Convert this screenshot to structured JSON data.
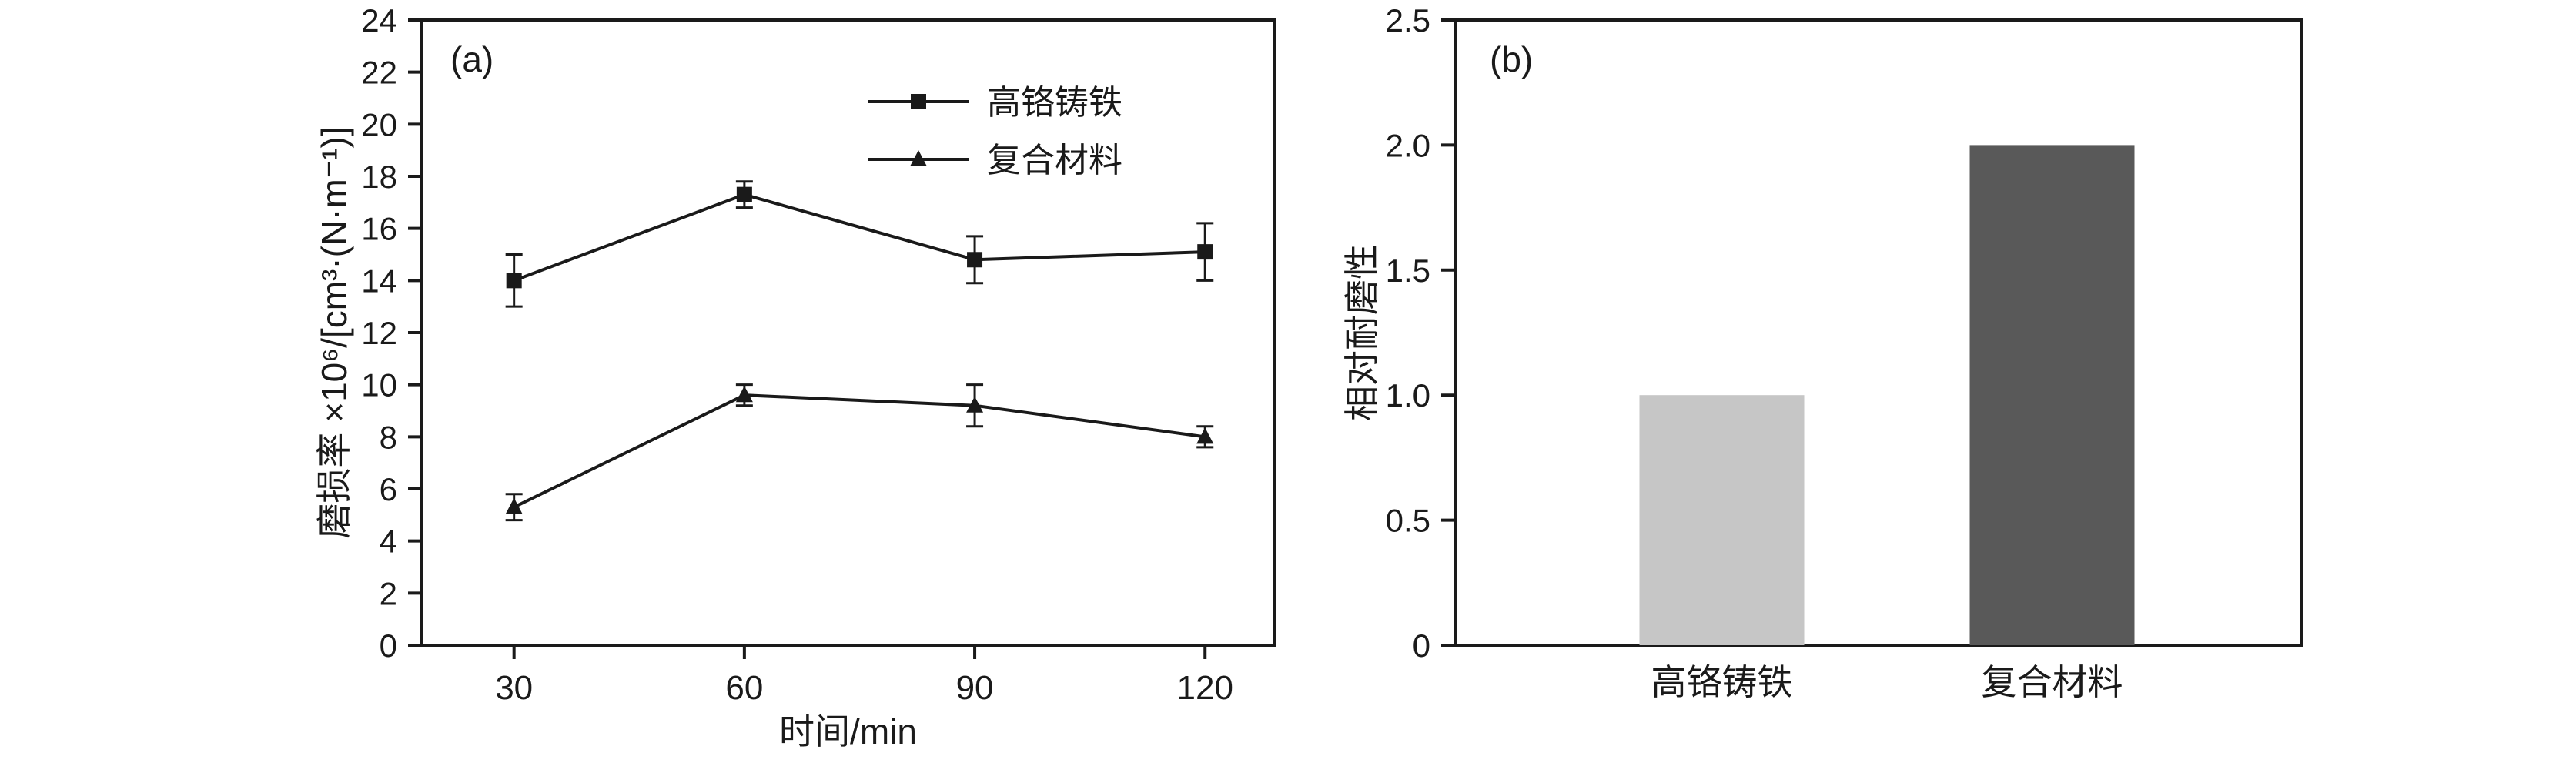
{
  "figure": {
    "background": "#ffffff",
    "ink_color": "#1a1a1a"
  },
  "chart_data": [
    {
      "type": "line",
      "panel_label": "(a)",
      "x": [
        30,
        60,
        90,
        120
      ],
      "xticks": [
        30,
        60,
        90,
        120
      ],
      "series": [
        {
          "name": "高铬铸铁",
          "marker": "square",
          "values": [
            14.0,
            17.3,
            14.8,
            15.1
          ],
          "errors": [
            1.0,
            0.5,
            0.9,
            1.1
          ]
        },
        {
          "name": "复合材料",
          "marker": "triangle",
          "values": [
            5.3,
            9.6,
            9.2,
            8.0
          ],
          "errors": [
            0.5,
            0.4,
            0.8,
            0.4
          ]
        }
      ],
      "xlabel": "时间/min",
      "ylabel": "磨损率 ×10⁶/[cm³·(N·m⁻¹)]",
      "ylim": [
        0,
        24
      ],
      "ytick_step": 2,
      "xlim_inner": [
        18,
        129
      ],
      "legend_position": "top-center",
      "line_color": "#1a1a1a",
      "grid": false
    },
    {
      "type": "bar",
      "panel_label": "(b)",
      "categories": [
        "高铬铸铁",
        "复合材料"
      ],
      "values": [
        1.0,
        2.0
      ],
      "bar_colors": [
        "#c6c6c6",
        "#595959"
      ],
      "xlabel": "",
      "ylabel": "相对耐磨性",
      "ylim": [
        0,
        2.5
      ],
      "ytick_step": 0.5,
      "ytick_labels": [
        "0",
        "0.5",
        "1.0",
        "1.5",
        "2.0",
        "2.5"
      ],
      "grid": false
    }
  ]
}
